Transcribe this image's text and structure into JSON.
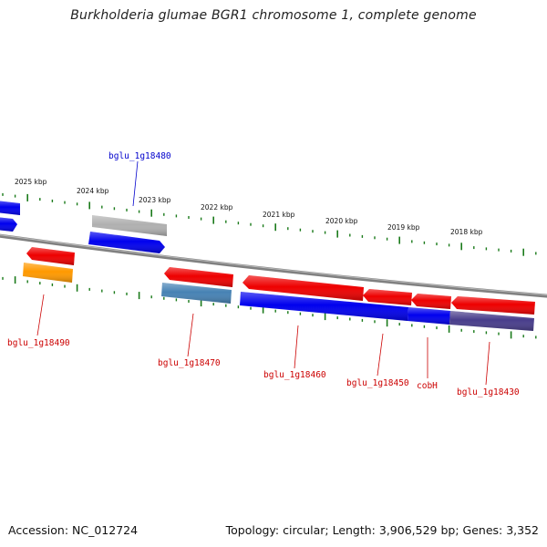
{
  "title": "Burkholderia glumae BGR1 chromosome 1, complete genome",
  "footer": {
    "accession": "Accession: NC_012724",
    "summary": "Topology: circular; Length: 3,906,529 bp; Genes: 3,352"
  },
  "colors": {
    "backbone": "#808080",
    "tick": "#1a7a1a",
    "label_forward": "#0000cc",
    "label_reverse": "#cc0000",
    "cds": "#0000ee",
    "gene_red": "#ee0000",
    "gene_gray": "#b0b0b0",
    "gene_orange": "#ff9900",
    "gene_steel": "#4682b4",
    "gene_slate": "#483d8b"
  },
  "scale_labels": [
    "2025 kbp",
    "2024 kbp",
    "2023 kbp",
    "2022 kbp",
    "2021 kbp",
    "2020 kbp",
    "2019 kbp",
    "2018 kbp"
  ],
  "gene_labels": {
    "bglu_1g18480": "bglu_1g18480",
    "bglu_1g18490": "bglu_1g18490",
    "bglu_1g18470": "bglu_1g18470",
    "bglu_1g18460": "bglu_1g18460",
    "bglu_1g18450": "bglu_1g18450",
    "cobH": "cobH",
    "bglu_1g18430": "bglu_1g18430"
  }
}
